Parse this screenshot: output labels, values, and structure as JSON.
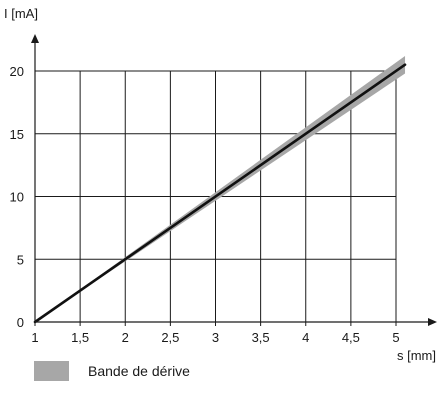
{
  "chart_data": {
    "type": "line",
    "xlabel": "s [mm]",
    "ylabel": "I [mA]",
    "xlim": [
      1,
      5.2
    ],
    "ylim": [
      0,
      21.5
    ],
    "x_ticks": [
      1,
      1.5,
      2,
      2.5,
      3,
      3.5,
      4,
      4.5,
      5
    ],
    "x_tick_labels": [
      "1",
      "1,5",
      "2",
      "2,5",
      "3",
      "3,5",
      "4",
      "4,5",
      "5"
    ],
    "y_ticks": [
      0,
      5,
      10,
      15,
      20
    ],
    "y_tick_labels": [
      "0",
      "5",
      "10",
      "15",
      "20"
    ],
    "grid": true,
    "series": [
      {
        "x": [
          1,
          5.1
        ],
        "y": [
          0,
          20.5
        ],
        "color": "#111111"
      }
    ],
    "bands": [
      {
        "name": "Bande de dérive",
        "x": [
          1,
          5.1
        ],
        "y_lower": [
          0,
          19.8
        ],
        "y_upper": [
          0,
          21.2
        ],
        "color": "#a7a7a7"
      }
    ],
    "legend": {
      "placement": "bottom-left",
      "entries": [
        {
          "label": "Bande de dérive",
          "color": "#a7a7a7"
        }
      ]
    }
  }
}
